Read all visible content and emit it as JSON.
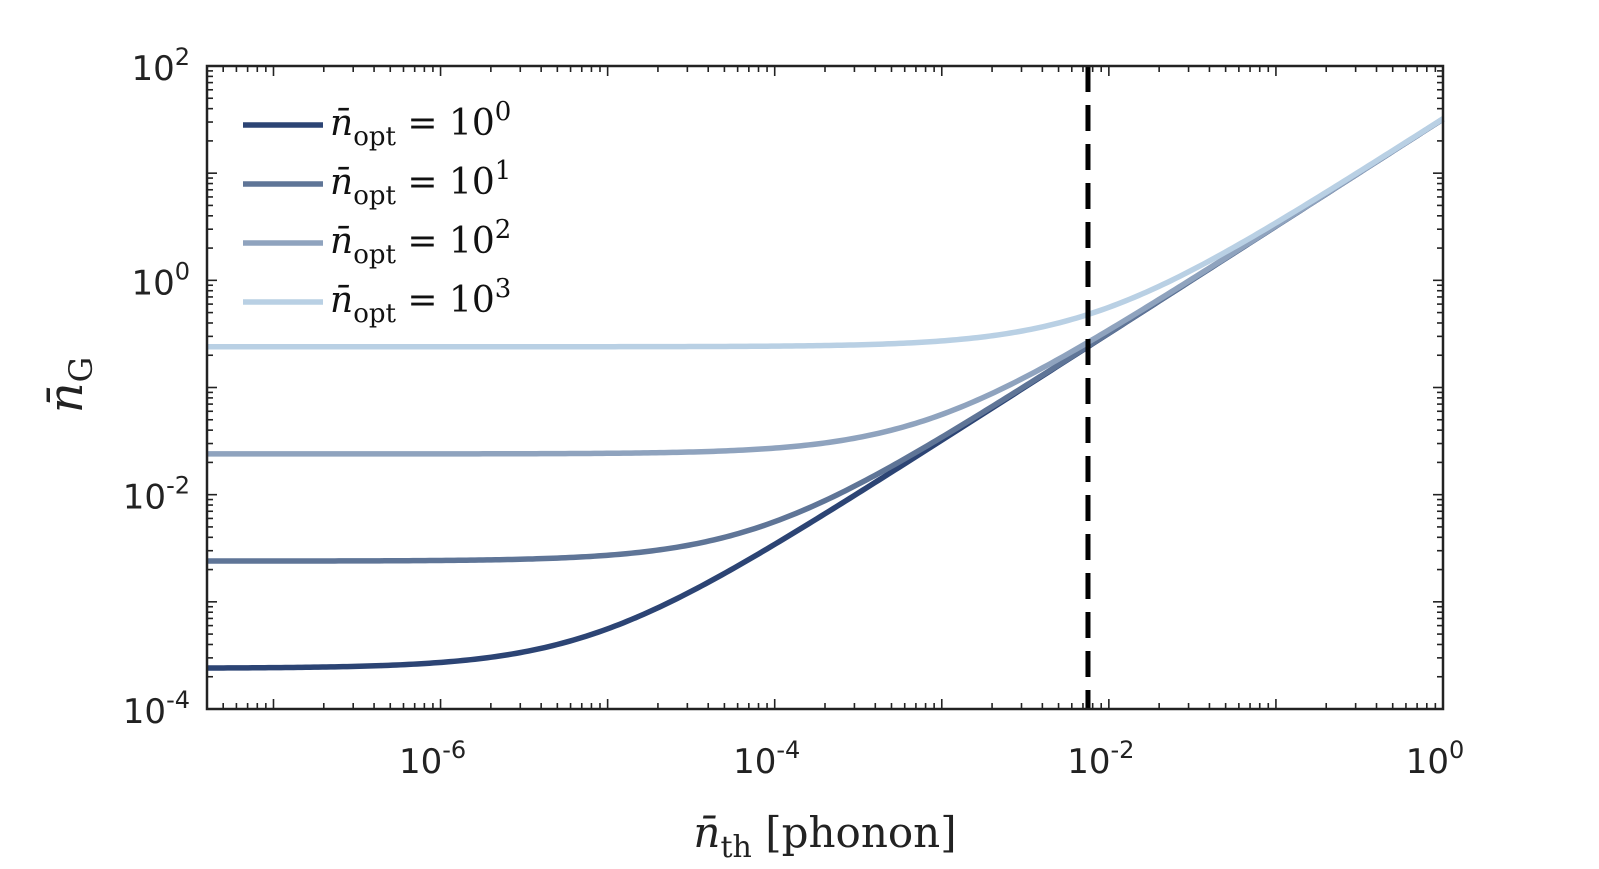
{
  "chart_data": {
    "type": "line",
    "x_scale": "log",
    "y_scale": "log",
    "xlim": [
      4e-08,
      1
    ],
    "ylim": [
      0.0001,
      100
    ],
    "x_ticks": [
      {
        "value": 1e-06,
        "base": "10",
        "exp": "-6"
      },
      {
        "value": 0.0001,
        "base": "10",
        "exp": "-4"
      },
      {
        "value": 0.01,
        "base": "10",
        "exp": "-2"
      },
      {
        "value": 1,
        "base": "10",
        "exp": "0"
      }
    ],
    "y_ticks": [
      {
        "value": 0.0001,
        "base": "10",
        "exp": "-4"
      },
      {
        "value": 0.01,
        "base": "10",
        "exp": "-2"
      },
      {
        "value": 1,
        "base": "10",
        "exp": "0"
      },
      {
        "value": 100,
        "base": "10",
        "exp": "2"
      }
    ],
    "xlabel": {
      "sym": "n̄",
      "sub": "th",
      "unit": "[phonon]"
    },
    "ylabel": {
      "sym": "n̄",
      "sub": "G"
    },
    "grid": false,
    "legend_position": "top-left",
    "series": [
      {
        "name": {
          "sym": "n̄",
          "sub": "opt",
          "rel": "= 10",
          "exp": "0"
        },
        "color": "#2c4474",
        "floor": 0.00024
      },
      {
        "name": {
          "sym": "n̄",
          "sub": "opt",
          "rel": "= 10",
          "exp": "1"
        },
        "color": "#5f7597",
        "floor": 0.0024
      },
      {
        "name": {
          "sym": "n̄",
          "sub": "opt",
          "rel": "= 10",
          "exp": "2"
        },
        "color": "#8fa3be",
        "floor": 0.024
      },
      {
        "name": {
          "sym": "n̄",
          "sub": "opt",
          "rel": "= 10",
          "exp": "3"
        },
        "color": "#b9d0e4",
        "floor": 0.24
      }
    ],
    "curve_model": "n_G = floor + 32 * n_th",
    "vertical_line": {
      "x": 0.0075,
      "style": "dashed",
      "color": "#000000"
    }
  }
}
